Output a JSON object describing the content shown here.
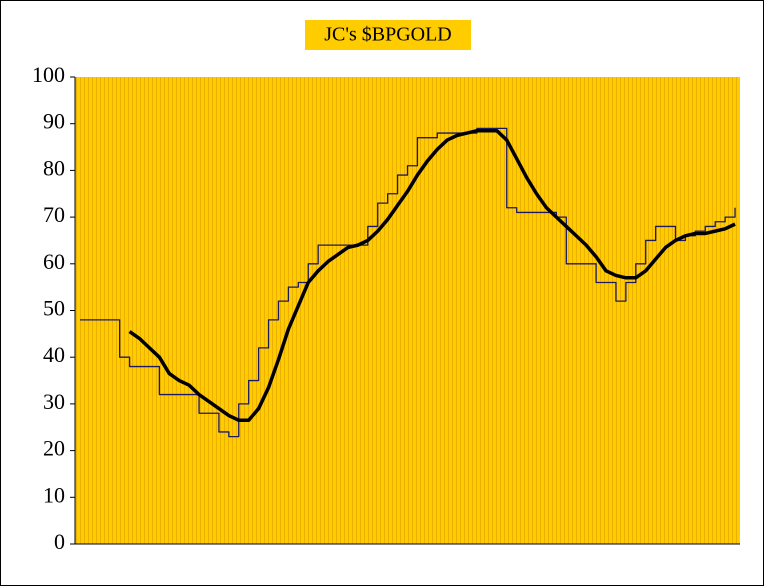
{
  "chart_data": {
    "type": "line",
    "title": "JC's $BPGOLD",
    "categories": [
      null,
      null,
      null,
      null,
      null,
      null,
      null,
      null,
      null,
      null,
      null,
      null,
      null,
      null,
      null,
      null,
      null,
      null,
      null,
      null,
      null,
      null,
      null,
      null,
      null,
      null,
      null,
      null,
      null,
      null,
      null,
      null,
      null,
      null,
      null,
      null,
      null,
      null,
      null,
      null,
      null,
      null,
      null,
      null,
      null,
      null,
      null,
      null,
      null,
      null,
      null,
      null,
      null,
      null,
      null,
      null,
      null,
      null,
      null,
      null,
      null,
      null,
      null,
      null,
      null,
      null,
      null
    ],
    "series": [
      {
        "color": "#1a1a66",
        "step": true,
        "width": 1.3,
        "values": [
          48,
          48,
          48,
          48,
          40,
          38,
          38,
          38,
          32,
          32,
          32,
          32,
          28,
          28,
          24,
          23,
          30,
          35,
          42,
          48,
          52,
          55,
          56,
          60,
          64,
          64,
          64,
          64,
          64,
          68,
          73,
          75,
          79,
          81,
          87,
          87,
          88,
          88,
          88,
          88,
          89,
          89,
          89,
          72,
          71,
          71,
          71,
          71,
          70,
          60,
          60,
          60,
          56,
          56,
          52,
          56,
          60,
          65,
          68,
          68,
          65,
          66,
          67,
          68,
          69,
          70,
          72
        ]
      },
      {
        "color": "#000000",
        "step": false,
        "width": 3.5,
        "values": [
          null,
          null,
          null,
          null,
          null,
          45.5,
          44,
          42,
          40,
          36.5,
          35,
          34,
          32,
          30.5,
          29,
          27.5,
          26.5,
          26.5,
          29,
          33.5,
          39.5,
          46,
          51,
          56,
          58.5,
          60.5,
          62,
          63.5,
          64,
          65,
          67,
          69.5,
          72.5,
          75.5,
          79,
          82,
          84.5,
          86.5,
          87.5,
          88,
          88.5,
          88.5,
          88.5,
          86.5,
          82.5,
          78.5,
          75,
          72,
          70,
          68,
          66,
          64,
          61.5,
          58.5,
          57.5,
          57,
          57,
          58.5,
          61,
          63.5,
          65,
          66,
          66.5,
          66.5,
          67,
          67.5,
          68.5
        ]
      }
    ],
    "ylim": [
      0,
      100
    ],
    "yticks": [
      0,
      10,
      20,
      30,
      40,
      50,
      60,
      70,
      80,
      90,
      100
    ],
    "background": "#ffcc00"
  }
}
